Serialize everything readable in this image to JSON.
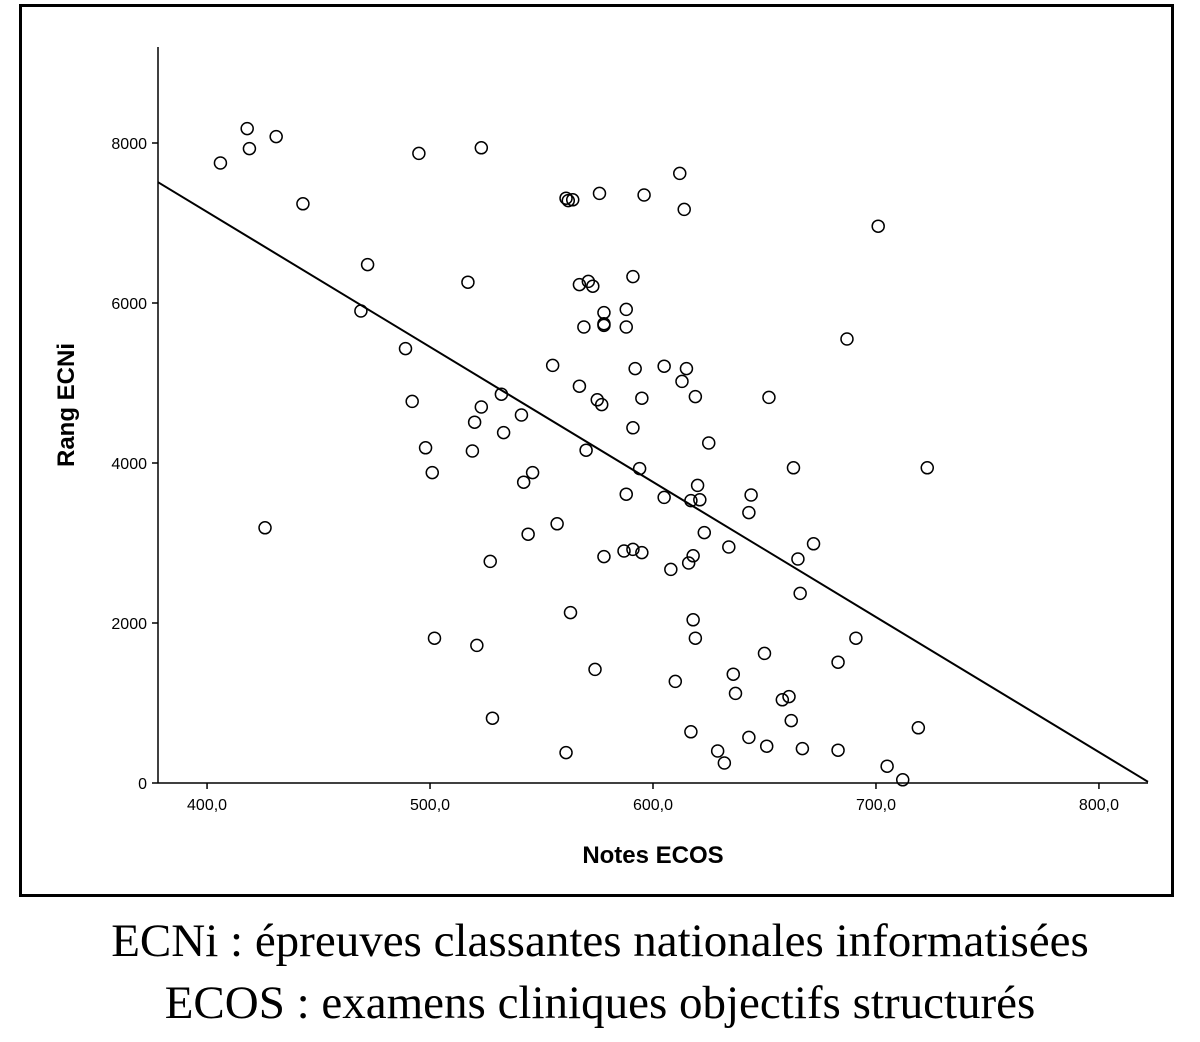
{
  "captions": {
    "line1": "ECNi : épreuves classantes nationales informatisées",
    "line2": "ECOS : examens cliniques objectifs structurés"
  },
  "chart_data": {
    "type": "scatter",
    "title": "",
    "xlabel": "Notes ECOS",
    "ylabel": "Rang ECNi",
    "xlim": [
      378,
      822
    ],
    "ylim": [
      0,
      9200
    ],
    "xticks": [
      400,
      500,
      600,
      700,
      800
    ],
    "xtick_labels": [
      "400,0",
      "500,0",
      "600,0",
      "700,0",
      "800,0"
    ],
    "yticks": [
      0,
      2000,
      4000,
      6000,
      8000
    ],
    "ytick_labels": [
      "0",
      "2000",
      "4000",
      "6000",
      "8000"
    ],
    "grid": false,
    "legend": "none",
    "marker": "open-circle",
    "colors": {
      "points": "#000000",
      "line": "#000000",
      "axes": "#000000"
    },
    "fit_line": {
      "x": [
        378,
        822
      ],
      "y": [
        7510,
        15
      ]
    },
    "x": [
      406,
      418,
      419,
      431,
      426,
      443,
      469,
      472,
      489,
      492,
      495,
      498,
      501,
      502,
      517,
      519,
      520,
      521,
      523,
      523,
      527,
      528,
      532,
      533,
      541,
      542,
      544,
      546,
      555,
      557,
      561,
      561,
      562,
      563,
      564,
      567,
      567,
      569,
      570,
      571,
      573,
      574,
      575,
      576,
      577,
      578,
      578,
      578,
      578,
      587,
      588,
      588,
      588,
      591,
      591,
      591,
      592,
      594,
      595,
      595,
      596,
      605,
      605,
      608,
      610,
      612,
      613,
      614,
      615,
      616,
      617,
      617,
      618,
      618,
      619,
      619,
      620,
      621,
      623,
      625,
      629,
      632,
      634,
      636,
      637,
      643,
      643,
      644,
      650,
      651,
      652,
      658,
      661,
      662,
      663,
      665,
      666,
      667,
      672,
      683,
      683,
      687,
      691,
      701,
      705,
      712,
      719,
      723
    ],
    "y": [
      7750,
      8180,
      7930,
      8080,
      3190,
      7240,
      5900,
      6480,
      5430,
      4770,
      7870,
      4190,
      3880,
      1810,
      6260,
      4150,
      4510,
      1720,
      4700,
      7940,
      2770,
      810,
      4860,
      4380,
      4600,
      3760,
      3110,
      3880,
      5220,
      3240,
      7310,
      380,
      7280,
      2130,
      7290,
      6230,
      4960,
      5700,
      4160,
      6270,
      6210,
      1420,
      4790,
      7370,
      4730,
      2830,
      5740,
      5880,
      5720,
      2900,
      3610,
      5920,
      5700,
      6330,
      4440,
      2920,
      5180,
      3930,
      2880,
      4810,
      7350,
      5210,
      3570,
      2670,
      1270,
      7620,
      5020,
      7170,
      5180,
      2750,
      640,
      3530,
      2040,
      2840,
      1810,
      4830,
      3720,
      3540,
      3130,
      4250,
      400,
      250,
      2950,
      1360,
      1120,
      3380,
      570,
      3600,
      1620,
      460,
      4820,
      1040,
      1080,
      780,
      3940,
      2800,
      2370,
      430,
      2990,
      1510,
      410,
      5550,
      1810,
      6960,
      210,
      40,
      690,
      3940
    ]
  }
}
